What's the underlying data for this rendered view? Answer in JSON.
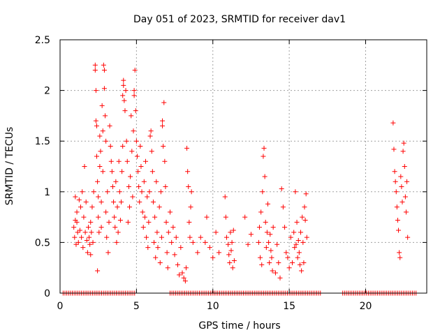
{
  "chart_data": {
    "type": "scatter",
    "title": "Day 051 of 2023, SRMTID for receiver dav1",
    "xlabel": "GPS time / hours",
    "ylabel": "SRMTID / TECUs",
    "xlim": [
      0,
      24
    ],
    "ylim": [
      0,
      2.5
    ],
    "x_ticks": [
      0,
      5,
      10,
      15,
      20
    ],
    "x_tick_labels": [
      "0",
      "5",
      "10",
      "15",
      "20"
    ],
    "y_ticks": [
      0,
      0.5,
      1,
      1.5,
      2,
      2.5
    ],
    "y_tick_labels": [
      "0",
      "0.5",
      "1",
      "1.5",
      "2",
      "2.5"
    ],
    "grid": true,
    "marker": "plus",
    "color": "#ff0000",
    "series": [
      {
        "name": "SRMTID",
        "points": [
          [
            0.9,
            0.65
          ],
          [
            0.95,
            0.55
          ],
          [
            1.0,
            0.72
          ],
          [
            1.05,
            0.48
          ],
          [
            1.1,
            0.8
          ],
          [
            1.15,
            0.6
          ],
          [
            1.0,
            0.95
          ],
          [
            1.2,
            0.5
          ],
          [
            1.1,
            0.7
          ],
          [
            1.25,
            0.92
          ],
          [
            1.3,
            0.62
          ],
          [
            1.35,
            0.85
          ],
          [
            1.4,
            0.55
          ],
          [
            1.45,
            1.0
          ],
          [
            1.5,
            0.45
          ],
          [
            1.55,
            0.75
          ],
          [
            1.6,
            1.25
          ],
          [
            1.65,
            0.6
          ],
          [
            1.7,
            0.9
          ],
          [
            1.75,
            0.52
          ],
          [
            1.8,
            0.4
          ],
          [
            1.85,
            0.65
          ],
          [
            1.9,
            0.55
          ],
          [
            1.95,
            0.48
          ],
          [
            2.0,
            0.7
          ],
          [
            2.0,
            0.38
          ],
          [
            2.05,
            0.6
          ],
          [
            2.1,
            0.85
          ],
          [
            2.15,
            0.5
          ],
          [
            2.2,
            1.0
          ],
          [
            2.3,
            2.25
          ],
          [
            2.3,
            2.2
          ],
          [
            2.35,
            2.0
          ],
          [
            2.35,
            1.7
          ],
          [
            2.4,
            1.65
          ],
          [
            2.4,
            1.35
          ],
          [
            2.45,
            1.1
          ],
          [
            2.45,
            0.22
          ],
          [
            2.5,
            0.95
          ],
          [
            2.5,
            0.75
          ],
          [
            2.55,
            0.6
          ],
          [
            2.6,
            1.55
          ],
          [
            2.6,
            1.25
          ],
          [
            2.65,
            1.4
          ],
          [
            2.7,
            0.9
          ],
          [
            2.7,
            0.65
          ],
          [
            2.75,
            1.85
          ],
          [
            2.8,
            1.6
          ],
          [
            2.8,
            1.2
          ],
          [
            2.85,
            2.25
          ],
          [
            2.9,
            2.2
          ],
          [
            2.9,
            2.02
          ],
          [
            2.95,
            1.75
          ],
          [
            3.0,
            1.5
          ],
          [
            3.0,
            0.8
          ],
          [
            3.05,
            0.55
          ],
          [
            3.1,
            1.0
          ],
          [
            3.15,
            0.4
          ],
          [
            3.2,
            0.7
          ],
          [
            3.25,
            1.65
          ],
          [
            3.3,
            1.45
          ],
          [
            3.35,
            1.3
          ],
          [
            3.4,
            1.2
          ],
          [
            3.45,
            1.05
          ],
          [
            3.5,
            0.9
          ],
          [
            3.55,
            0.75
          ],
          [
            3.6,
            0.65
          ],
          [
            3.65,
            1.1
          ],
          [
            3.7,
            0.5
          ],
          [
            3.75,
            0.85
          ],
          [
            3.8,
            0.6
          ],
          [
            3.85,
            1.3
          ],
          [
            3.9,
            1.0
          ],
          [
            3.95,
            0.72
          ],
          [
            4.0,
            0.9
          ],
          [
            4.05,
            1.2
          ],
          [
            4.1,
            1.45
          ],
          [
            4.1,
            1.95
          ],
          [
            4.15,
            2.05
          ],
          [
            4.15,
            2.1
          ],
          [
            4.2,
            1.9
          ],
          [
            4.25,
            1.8
          ],
          [
            4.3,
            2.0
          ],
          [
            4.35,
            1.5
          ],
          [
            4.4,
            1.3
          ],
          [
            4.45,
            0.7
          ],
          [
            4.5,
            1.05
          ],
          [
            4.55,
            0.85
          ],
          [
            4.6,
            1.15
          ],
          [
            4.65,
            1.75
          ],
          [
            4.7,
            1.4
          ],
          [
            4.75,
            0.95
          ],
          [
            4.8,
            1.6
          ],
          [
            4.85,
            2.0
          ],
          [
            4.85,
            1.95
          ],
          [
            4.9,
            2.2
          ],
          [
            4.95,
            1.8
          ],
          [
            5.0,
            1.5
          ],
          [
            5.05,
            1.35
          ],
          [
            5.1,
            1.2
          ],
          [
            5.15,
            1.05
          ],
          [
            5.2,
            0.9
          ],
          [
            5.25,
            1.45
          ],
          [
            5.3,
            1.25
          ],
          [
            5.35,
            1.0
          ],
          [
            5.4,
            0.8
          ],
          [
            5.45,
            0.65
          ],
          [
            5.5,
            1.1
          ],
          [
            5.55,
            0.75
          ],
          [
            5.6,
            1.3
          ],
          [
            5.65,
            0.55
          ],
          [
            5.7,
            0.95
          ],
          [
            5.75,
            0.45
          ],
          [
            5.8,
            0.7
          ],
          [
            5.85,
            1.0
          ],
          [
            5.9,
            1.55
          ],
          [
            5.95,
            1.6
          ],
          [
            6.0,
            1.4
          ],
          [
            6.05,
            1.2
          ],
          [
            6.1,
            0.9
          ],
          [
            6.15,
            0.5
          ],
          [
            6.2,
            0.75
          ],
          [
            6.25,
            0.35
          ],
          [
            6.3,
            1.1
          ],
          [
            6.35,
            0.6
          ],
          [
            6.4,
            0.45
          ],
          [
            6.5,
            0.85
          ],
          [
            6.55,
            0.3
          ],
          [
            6.6,
            1.0
          ],
          [
            6.65,
            0.55
          ],
          [
            6.7,
            1.7
          ],
          [
            6.7,
            1.65
          ],
          [
            6.75,
            1.45
          ],
          [
            6.8,
            1.88
          ],
          [
            6.85,
            1.3
          ],
          [
            6.9,
            1.05
          ],
          [
            6.95,
            0.7
          ],
          [
            7.0,
            0.4
          ],
          [
            7.05,
            0.25
          ],
          [
            7.1,
            0.6
          ],
          [
            7.2,
            0.8
          ],
          [
            7.3,
            0.5
          ],
          [
            7.4,
            0.65
          ],
          [
            7.5,
            0.38
          ],
          [
            7.6,
            0.55
          ],
          [
            7.7,
            0.28
          ],
          [
            7.8,
            0.18
          ],
          [
            7.9,
            0.45
          ],
          [
            8.0,
            0.2
          ],
          [
            8.1,
            0.15
          ],
          [
            8.2,
            0.12
          ],
          [
            8.25,
            0.25
          ],
          [
            8.3,
            1.43
          ],
          [
            8.35,
            1.2
          ],
          [
            8.4,
            1.05
          ],
          [
            8.45,
            0.7
          ],
          [
            8.5,
            0.55
          ],
          [
            8.55,
            0.85
          ],
          [
            8.6,
            1.0
          ],
          [
            8.7,
            0.5
          ],
          [
            9.0,
            0.4
          ],
          [
            9.2,
            0.55
          ],
          [
            9.5,
            0.5
          ],
          [
            9.6,
            0.75
          ],
          [
            9.8,
            0.45
          ],
          [
            10.0,
            0.35
          ],
          [
            10.2,
            0.6
          ],
          [
            10.4,
            0.4
          ],
          [
            10.8,
            0.95
          ],
          [
            10.85,
            0.75
          ],
          [
            10.9,
            0.55
          ],
          [
            11.0,
            0.48
          ],
          [
            11.05,
            0.38
          ],
          [
            11.1,
            0.3
          ],
          [
            11.15,
            0.6
          ],
          [
            11.2,
            0.42
          ],
          [
            11.25,
            0.5
          ],
          [
            11.3,
            0.25
          ],
          [
            11.35,
            0.62
          ],
          [
            11.4,
            0.32
          ],
          [
            12.1,
            0.75
          ],
          [
            12.3,
            0.48
          ],
          [
            12.5,
            0.58
          ],
          [
            13.0,
            0.5
          ],
          [
            13.05,
            0.65
          ],
          [
            13.1,
            0.35
          ],
          [
            13.15,
            0.8
          ],
          [
            13.2,
            0.28
          ],
          [
            13.25,
            1.0
          ],
          [
            13.3,
            1.35
          ],
          [
            13.35,
            1.43
          ],
          [
            13.4,
            1.15
          ],
          [
            13.45,
            0.7
          ],
          [
            13.5,
            0.45
          ],
          [
            13.55,
            0.6
          ],
          [
            13.6,
            0.88
          ],
          [
            13.65,
            0.5
          ],
          [
            13.7,
            0.3
          ],
          [
            13.75,
            0.58
          ],
          [
            13.8,
            0.42
          ],
          [
            13.85,
            0.35
          ],
          [
            13.9,
            0.22
          ],
          [
            13.95,
            0.65
          ],
          [
            14.1,
            0.2
          ],
          [
            14.2,
            0.48
          ],
          [
            14.3,
            0.3
          ],
          [
            14.4,
            0.15
          ],
          [
            14.5,
            1.03
          ],
          [
            14.6,
            0.85
          ],
          [
            14.7,
            0.65
          ],
          [
            14.8,
            0.4
          ],
          [
            14.9,
            0.35
          ],
          [
            15.0,
            0.25
          ],
          [
            15.1,
            0.55
          ],
          [
            15.2,
            0.3
          ],
          [
            15.3,
            0.6
          ],
          [
            15.35,
            0.45
          ],
          [
            15.4,
            1.0
          ],
          [
            15.45,
            0.48
          ],
          [
            15.5,
            0.7
          ],
          [
            15.55,
            0.35
          ],
          [
            15.6,
            0.52
          ],
          [
            15.65,
            0.4
          ],
          [
            15.7,
            0.28
          ],
          [
            15.75,
            0.6
          ],
          [
            15.8,
            0.22
          ],
          [
            15.85,
            0.75
          ],
          [
            15.9,
            0.5
          ],
          [
            15.95,
            0.3
          ],
          [
            16.0,
            0.85
          ],
          [
            16.05,
            0.72
          ],
          [
            16.1,
            0.98
          ],
          [
            16.15,
            0.55
          ],
          [
            21.8,
            1.68
          ],
          [
            21.85,
            1.42
          ],
          [
            21.9,
            1.2
          ],
          [
            21.95,
            1.1
          ],
          [
            22.0,
            1.0
          ],
          [
            22.05,
            0.85
          ],
          [
            22.1,
            0.72
          ],
          [
            22.15,
            0.62
          ],
          [
            22.2,
            0.4
          ],
          [
            22.25,
            0.35
          ],
          [
            22.3,
            1.15
          ],
          [
            22.35,
            1.05
          ],
          [
            22.4,
            0.9
          ],
          [
            22.45,
            1.4
          ],
          [
            22.5,
            1.48
          ],
          [
            22.55,
            1.25
          ],
          [
            22.6,
            0.95
          ],
          [
            22.65,
            0.8
          ],
          [
            22.7,
            1.1
          ],
          [
            22.75,
            0.55
          ]
        ],
        "zero_segments": [
          [
            0.2,
            4.9
          ],
          [
            7.2,
            17.1
          ],
          [
            18.5,
            23.4
          ]
        ]
      }
    ]
  }
}
